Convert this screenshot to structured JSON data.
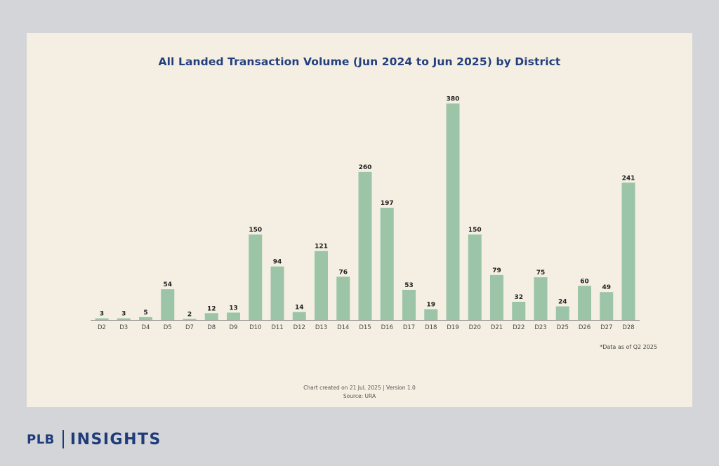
{
  "brand": {
    "left_text": "PLB",
    "right_text": "INSIGHTS"
  },
  "chart": {
    "footnote": "*Data as of Q2 2025",
    "created_note": "Chart created on 21 Jul, 2025 | Version 1.0",
    "source_note": "Source: URA"
  },
  "chart_data": {
    "type": "bar",
    "title": "All Landed Transaction Volume (Jun 2024 to Jun 2025) by District",
    "xlabel": "",
    "ylabel": "",
    "ylim": [
      0,
      400
    ],
    "grid": false,
    "bar_color": "#9bc5a6",
    "categories": [
      "D2",
      "D3",
      "D4",
      "D5",
      "D7",
      "D8",
      "D9",
      "D10",
      "D11",
      "D12",
      "D13",
      "D14",
      "D15",
      "D16",
      "D17",
      "D18",
      "D19",
      "D20",
      "D21",
      "D22",
      "D23",
      "D25",
      "D26",
      "D27",
      "D28"
    ],
    "values": [
      3,
      3,
      5,
      54,
      2,
      12,
      13,
      150,
      94,
      14,
      121,
      76,
      260,
      197,
      53,
      19,
      380,
      150,
      79,
      32,
      75,
      24,
      60,
      49,
      241
    ]
  }
}
